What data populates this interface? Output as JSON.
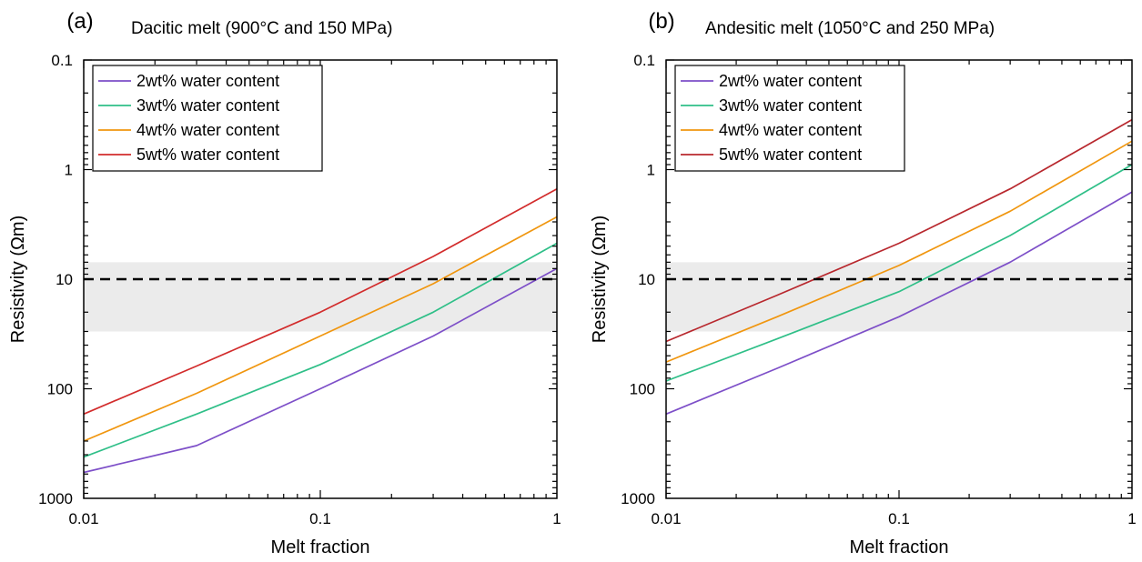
{
  "chart_data": [
    {
      "type": "line",
      "panel_label": "(a)",
      "title": "Dacitic melt (900°C and 150 MPa)",
      "xlabel": "Melt fraction",
      "ylabel": "Resistivity (Ωm)",
      "x_scale": "log",
      "y_scale": "log",
      "y_reversed": true,
      "xlim": [
        0.01,
        1
      ],
      "ylim": [
        0.1,
        1000
      ],
      "x_ticks": [
        0.01,
        0.1,
        1
      ],
      "x_tick_labels": [
        "0.01",
        "0.1",
        "1"
      ],
      "y_ticks": [
        0.1,
        1,
        10,
        100,
        1000
      ],
      "y_tick_labels": [
        "0.1",
        "1",
        "10",
        "100",
        "1000"
      ],
      "grid": false,
      "legend_position": "top-left",
      "shaded_band": {
        "y_from": 7,
        "y_to": 30,
        "color": "#ebebeb"
      },
      "reference_line": {
        "y": 10,
        "style": "dashed",
        "color": "#000000"
      },
      "series": [
        {
          "name": "2wt% water content",
          "color": "#7d4fc8",
          "x": [
            0.01,
            0.03,
            0.1,
            0.3,
            1
          ],
          "y": [
            580,
            330,
            100,
            33,
            8
          ]
        },
        {
          "name": "3wt% water content",
          "color": "#2fbf88",
          "x": [
            0.01,
            0.03,
            0.1,
            0.3,
            1
          ],
          "y": [
            420,
            170,
            60,
            20,
            4.7
          ]
        },
        {
          "name": "4wt% water content",
          "color": "#f0960f",
          "x": [
            0.01,
            0.03,
            0.1,
            0.3,
            1
          ],
          "y": [
            300,
            110,
            33,
            11,
            2.7
          ]
        },
        {
          "name": "5wt% water content",
          "color": "#d22c2c",
          "x": [
            0.01,
            0.03,
            0.1,
            0.3,
            1
          ],
          "y": [
            170,
            62,
            20,
            6.2,
            1.5
          ]
        }
      ]
    },
    {
      "type": "line",
      "panel_label": "(b)",
      "title": "Andesitic melt (1050°C and 250 MPa)",
      "xlabel": "Melt fraction",
      "ylabel": "Resistivity (Ωm)",
      "x_scale": "log",
      "y_scale": "log",
      "y_reversed": true,
      "xlim": [
        0.01,
        1
      ],
      "ylim": [
        0.1,
        1000
      ],
      "x_ticks": [
        0.01,
        0.1,
        1
      ],
      "x_tick_labels": [
        "0.01",
        "0.1",
        "1"
      ],
      "y_ticks": [
        0.1,
        1,
        10,
        100,
        1000
      ],
      "y_tick_labels": [
        "0.1",
        "1",
        "10",
        "100",
        "1000"
      ],
      "grid": false,
      "legend_position": "top-left",
      "shaded_band": {
        "y_from": 7,
        "y_to": 30,
        "color": "#ebebeb"
      },
      "reference_line": {
        "y": 10,
        "style": "dashed",
        "color": "#000000"
      },
      "series": [
        {
          "name": "2wt% water content",
          "color": "#7d4fc8",
          "x": [
            0.01,
            0.03,
            0.1,
            0.3,
            1
          ],
          "y": [
            170,
            65,
            22,
            7,
            1.6
          ]
        },
        {
          "name": "3wt% water content",
          "color": "#2fbf88",
          "x": [
            0.01,
            0.03,
            0.1,
            0.3,
            1
          ],
          "y": [
            85,
            35,
            13,
            4,
            0.9
          ]
        },
        {
          "name": "4wt% water content",
          "color": "#f0960f",
          "x": [
            0.01,
            0.03,
            0.1,
            0.3,
            1
          ],
          "y": [
            57,
            22,
            7.5,
            2.4,
            0.55
          ]
        },
        {
          "name": "5wt% water content",
          "color": "#b8282e",
          "x": [
            0.01,
            0.03,
            0.1,
            0.3,
            1
          ],
          "y": [
            37,
            14,
            4.7,
            1.5,
            0.35
          ]
        }
      ]
    }
  ]
}
